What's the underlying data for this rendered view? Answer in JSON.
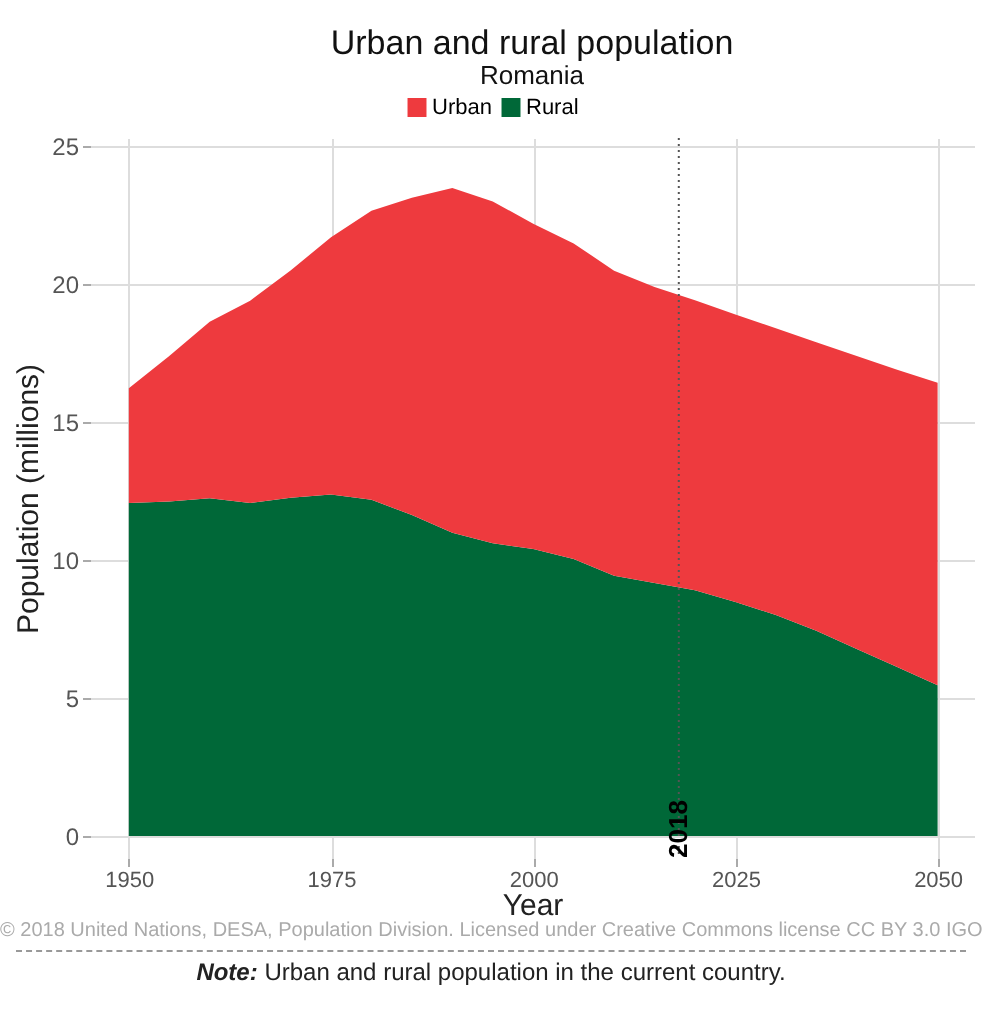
{
  "chart_data": {
    "type": "area",
    "title": "Urban and rural population",
    "subtitle": "Romania",
    "xlabel": "Year",
    "ylabel": "Population (millions)",
    "x": [
      1950,
      1955,
      1960,
      1965,
      1970,
      1975,
      1980,
      1985,
      1990,
      1995,
      2000,
      2005,
      2010,
      2015,
      2020,
      2025,
      2030,
      2035,
      2040,
      2045,
      2050
    ],
    "stacked": true,
    "series": [
      {
        "name": "Rural",
        "color": "#006838",
        "values": [
          12.07,
          12.12,
          12.24,
          12.07,
          12.26,
          12.38,
          12.19,
          11.63,
          10.99,
          10.61,
          10.4,
          10.04,
          9.43,
          9.17,
          8.91,
          8.48,
          8.01,
          7.44,
          6.78,
          6.12,
          5.46
        ]
      },
      {
        "name": "Urban",
        "color": "#ee3a3e",
        "values": [
          4.16,
          5.28,
          6.4,
          7.33,
          8.24,
          9.32,
          10.47,
          11.5,
          12.5,
          12.39,
          11.79,
          11.44,
          11.06,
          10.73,
          10.51,
          10.42,
          10.39,
          10.46,
          10.62,
          10.78,
          10.97
        ]
      }
    ],
    "xlim": [
      1945.2,
      2054.5
    ],
    "xticks": [
      1950,
      1975,
      2000,
      2025,
      2050
    ],
    "ylim": [
      -0.8,
      25.3
    ],
    "yticks": [
      0,
      5,
      10,
      15,
      20,
      25
    ],
    "grid": true,
    "legend": "top",
    "ref_lines": [
      {
        "axis": "x",
        "value": 2018,
        "label": "2018",
        "line_style": "dotted",
        "color": "#555555"
      }
    ],
    "annotations": [
      "© 2018 United Nations, DESA, Population Division. Licensed under Creative Commons license CC BY 3.0 IGO",
      "Note: Urban and rural population in the current country."
    ]
  }
}
